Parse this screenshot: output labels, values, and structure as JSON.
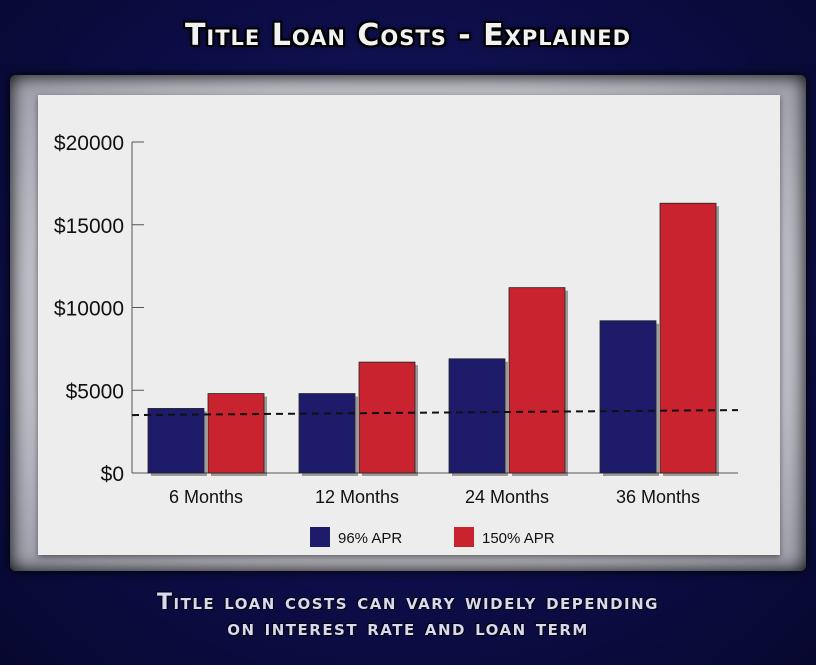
{
  "header": {
    "title": "Title Loan Costs - Explained"
  },
  "footer": {
    "caption_line1": "Title loan costs can vary widely depending",
    "caption_line2": "on interest rate and loan term"
  },
  "colors": {
    "series_96": "#1e1b6a",
    "series_150": "#c8232e",
    "background": "#0d0e4a",
    "plot_bg": "#ededed"
  },
  "chart_data": {
    "type": "bar",
    "title": "Title Loan Costs - Explained",
    "xlabel": "",
    "ylabel": "",
    "categories": [
      "6 Months",
      "12 Months",
      "24 Months",
      "36 Months"
    ],
    "series": [
      {
        "name": "96% APR",
        "values": [
          3900,
          4800,
          6900,
          9200
        ]
      },
      {
        "name": "150% APR",
        "values": [
          4800,
          6700,
          11200,
          16300
        ]
      }
    ],
    "ylim": [
      0,
      20000
    ],
    "yticks": [
      0,
      5000,
      10000,
      15000,
      20000
    ],
    "ytick_labels": [
      "$0",
      "$5000",
      "$10000",
      "$15000",
      "$20000"
    ],
    "reference_line": {
      "value": 3500,
      "style": "dashed"
    },
    "legend": "bottom-center",
    "grid": false
  }
}
